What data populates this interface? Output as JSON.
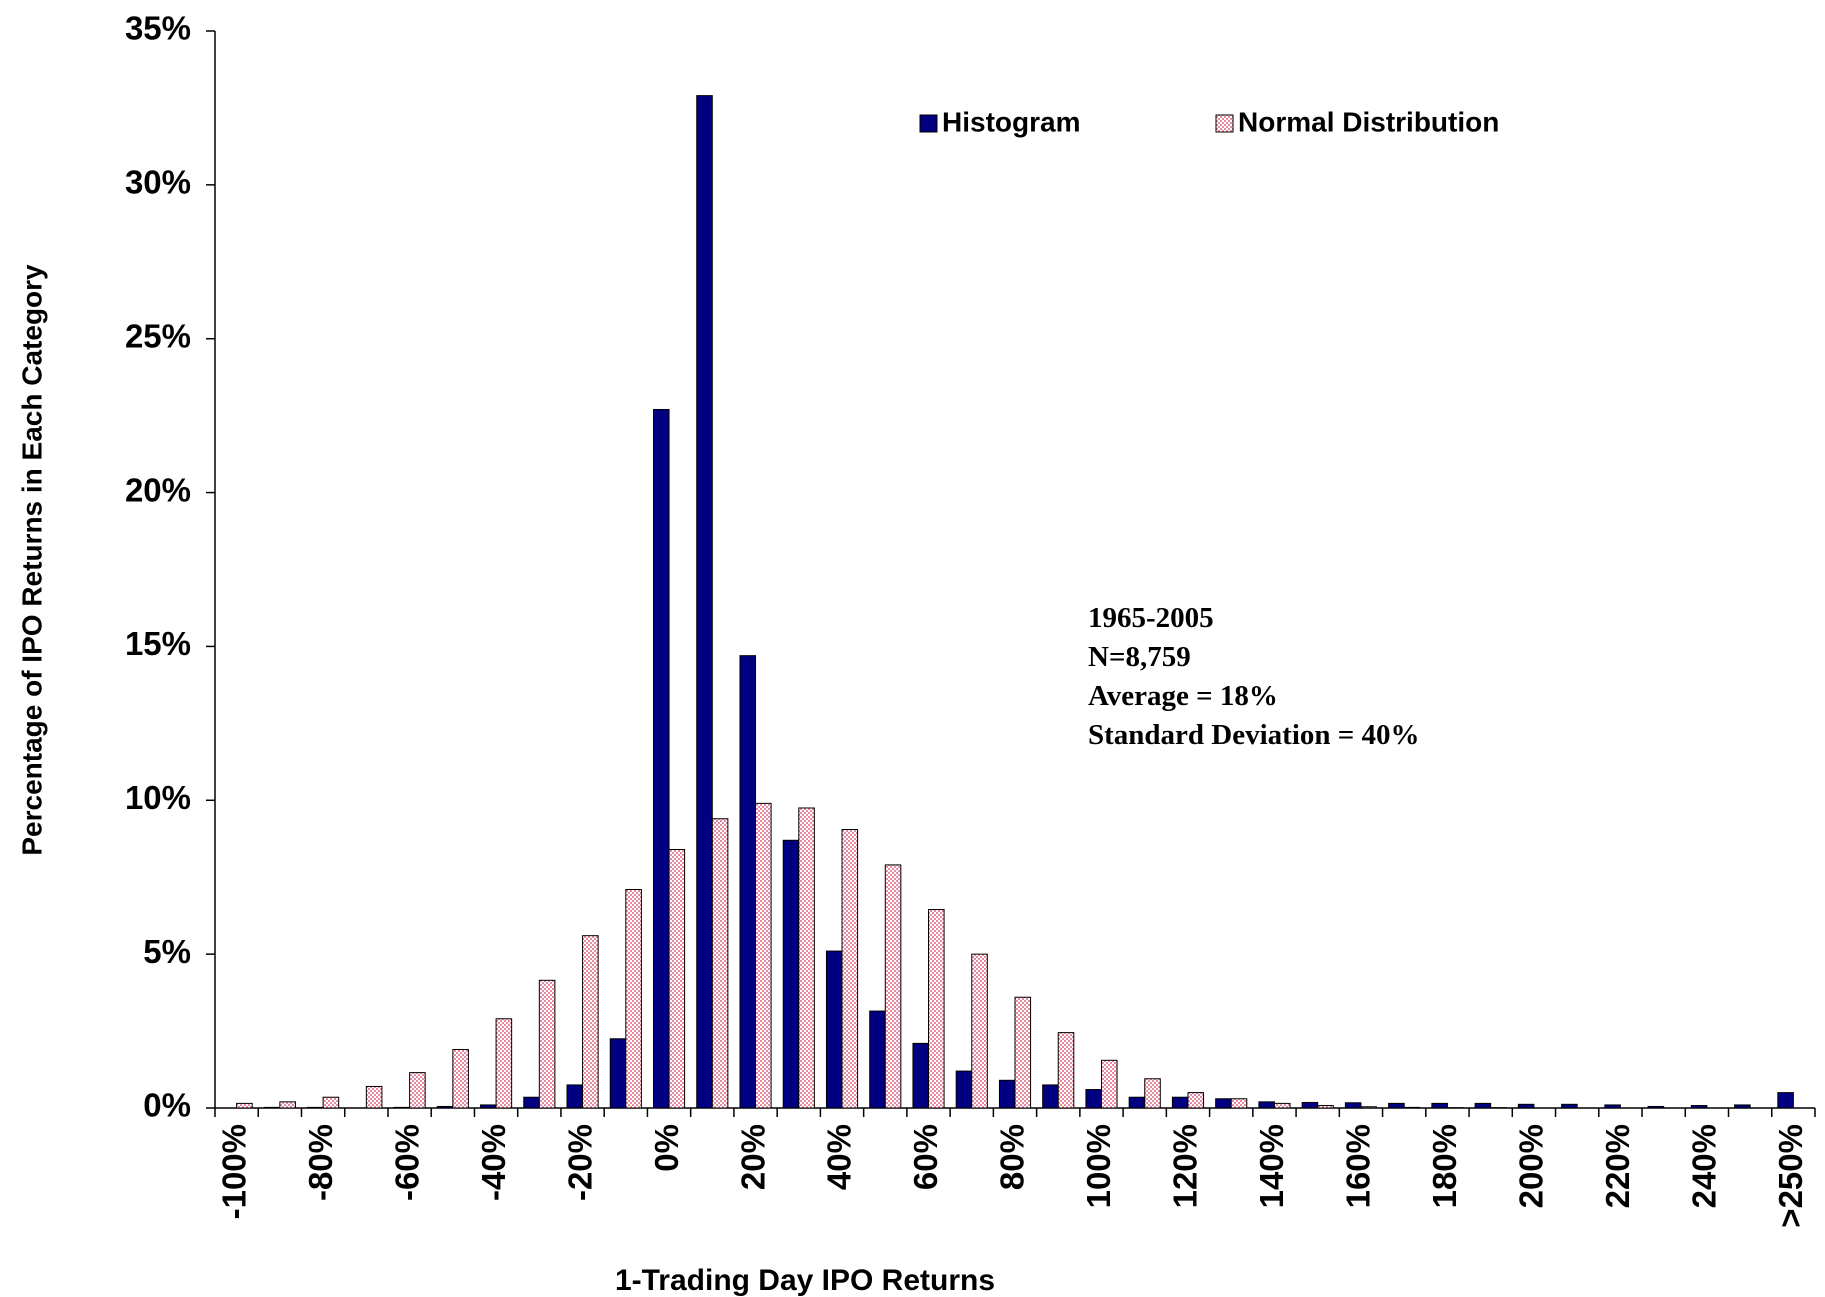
{
  "chart_data": {
    "type": "bar",
    "x_label": "1-Trading Day IPO Returns",
    "y_label": "Percentage of IPO Returns in Each Category",
    "annotations": [
      "1965-2005",
      "N=8,759",
      "Average = 18%",
      "Standard Deviation = 40%"
    ],
    "categories": [
      "-100%",
      null,
      "-80%",
      null,
      "-60%",
      null,
      "-40%",
      null,
      "-20%",
      null,
      "0%",
      null,
      "20%",
      null,
      "40%",
      null,
      "60%",
      null,
      "80%",
      null,
      "100%",
      null,
      "120%",
      null,
      "140%",
      null,
      "160%",
      null,
      "180%",
      null,
      "200%",
      null,
      "220%",
      null,
      "240%",
      null,
      ">250%"
    ],
    "series": [
      {
        "name": "Histogram",
        "color": "#000080",
        "pattern": false,
        "values": [
          0,
          0.02,
          0.02,
          0,
          0.02,
          0.05,
          0.1,
          0.35,
          0.75,
          2.25,
          22.7,
          32.9,
          14.7,
          8.7,
          5.1,
          3.15,
          2.1,
          1.2,
          0.9,
          0.75,
          0.6,
          0.35,
          0.35,
          0.3,
          0.2,
          0.18,
          0.17,
          0.15,
          0.15,
          0.15,
          0.12,
          0.12,
          0.1,
          0.05,
          0.08,
          0.1,
          0.5
        ]
      },
      {
        "name": "Normal Distribution",
        "color": "#e88aa0",
        "pattern": true,
        "values": [
          0.15,
          0.2,
          0.35,
          0.7,
          1.15,
          1.9,
          2.9,
          4.15,
          5.6,
          7.1,
          8.4,
          9.4,
          9.9,
          9.75,
          9.05,
          7.9,
          6.45,
          5.0,
          3.6,
          2.45,
          1.55,
          0.95,
          0.5,
          0.3,
          0.15,
          0.08,
          0.04,
          0.02,
          0.01,
          0.01,
          0,
          0,
          0,
          0,
          0,
          null,
          null
        ]
      }
    ],
    "ylim": [
      0,
      35
    ],
    "yticks": [
      {
        "value": 0,
        "label": "0%"
      },
      {
        "value": 5,
        "label": "5%"
      },
      {
        "value": 10,
        "label": "10%"
      },
      {
        "value": 15,
        "label": "15%"
      },
      {
        "value": 20,
        "label": "20%"
      },
      {
        "value": 25,
        "label": "25%"
      },
      {
        "value": 30,
        "label": "30%"
      },
      {
        "value": 35,
        "label": "35%"
      }
    ],
    "grid": false
  }
}
